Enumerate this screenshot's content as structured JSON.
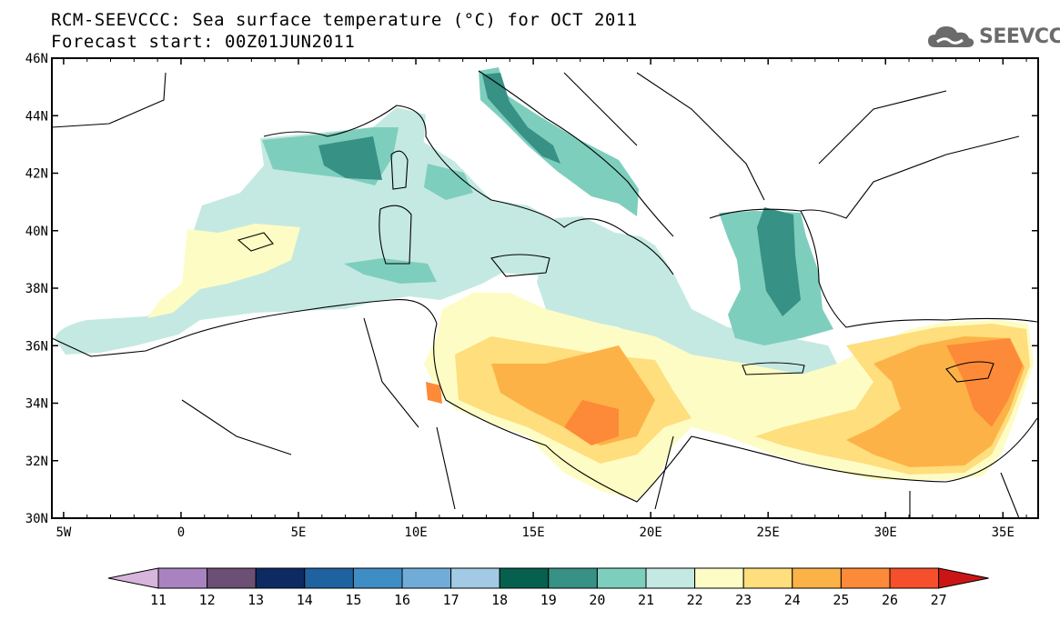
{
  "title_line1": "RCM-SEEVCCC: Sea surface temperature (°C) for OCT 2011",
  "title_line2": "Forecast start: 00Z01JUN2011",
  "logo": {
    "icon": "cloud-icon",
    "text": "SEEVCCC",
    "color": "#6b6b6b"
  },
  "map": {
    "lon_range": [
      -5.5,
      36.5
    ],
    "lat_range": [
      30,
      46
    ],
    "lat_ticks": [
      "30N",
      "32N",
      "34N",
      "36N",
      "38N",
      "40N",
      "42N",
      "44N",
      "46N"
    ],
    "lon_ticks": [
      "5W",
      "0",
      "5E",
      "10E",
      "15E",
      "20E",
      "25E",
      "30E",
      "35E"
    ],
    "land_color": "#ffffff",
    "coastline_color": "#000000"
  },
  "colorbar": {
    "labels": [
      "11",
      "12",
      "13",
      "14",
      "15",
      "16",
      "17",
      "18",
      "19",
      "20",
      "21",
      "22",
      "23",
      "24",
      "25",
      "26",
      "27"
    ],
    "colors": [
      "#d7b5dc",
      "#a983bf",
      "#6b4f75",
      "#0e2a63",
      "#1f62a0",
      "#3f8dc5",
      "#71acd9",
      "#a2cae4",
      "#05614d",
      "#379185",
      "#7ecebd",
      "#c4e9e2",
      "#fefcc5",
      "#fede7d",
      "#fdb247",
      "#fd8a38",
      "#f64f2c",
      "#cb1515"
    ]
  }
}
